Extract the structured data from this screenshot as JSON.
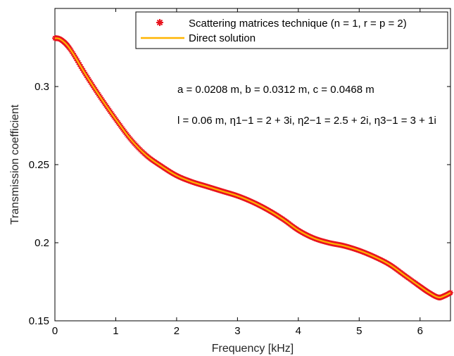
{
  "chart_data": {
    "type": "line",
    "xlabel": "Frequency [kHz]",
    "ylabel": "Transmission coefficient",
    "xlim": [
      0,
      6.5
    ],
    "ylim": [
      0.15,
      0.35
    ],
    "xticks": [
      0,
      1,
      2,
      3,
      4,
      5,
      6
    ],
    "yticks": [
      0.15,
      0.2,
      0.25,
      0.3
    ],
    "xtick_labels": [
      "0",
      "1",
      "2",
      "3",
      "4",
      "5",
      "6"
    ],
    "ytick_labels": [
      "0.15",
      "0.2",
      "0.25",
      "0.3"
    ],
    "grid": false,
    "legend_position": "top-right",
    "legend": [
      {
        "label_main": "Scattering matrices technique",
        "label_params": "(n = 1, r = p = 2)",
        "marker": "asterisk",
        "color": "#e8141e"
      },
      {
        "label_main": "Direct solution",
        "marker": "line",
        "color": "#ffb400"
      }
    ],
    "annotations": {
      "line1": "a = 0.0208 m, b = 0.0312 m, c = 0.0468 m",
      "line2": "l = 0.06 m, η1−1 = 2 + 3i, η2−1 = 2.5 + 2i, η3−1 = 3 + 1i"
    },
    "series": [
      {
        "name": "Scattering matrices technique (n = 1, r = p = 2)",
        "style": "markers",
        "color": "#e8141e",
        "x": [
          0.0,
          0.1,
          0.25,
          0.5,
          0.75,
          1.0,
          1.25,
          1.5,
          1.75,
          2.0,
          2.25,
          2.5,
          2.75,
          3.0,
          3.25,
          3.5,
          3.75,
          4.0,
          4.25,
          4.5,
          4.75,
          5.0,
          5.25,
          5.5,
          5.75,
          6.0,
          6.15,
          6.3,
          6.4,
          6.5
        ],
        "y": [
          0.331,
          0.33,
          0.324,
          0.308,
          0.293,
          0.279,
          0.266,
          0.256,
          0.249,
          0.243,
          0.239,
          0.236,
          0.233,
          0.23,
          0.226,
          0.221,
          0.215,
          0.208,
          0.203,
          0.2,
          0.198,
          0.195,
          0.191,
          0.186,
          0.179,
          0.172,
          0.168,
          0.165,
          0.166,
          0.168
        ]
      },
      {
        "name": "Direct solution",
        "style": "line",
        "color": "#ffb400",
        "x": [
          0.0,
          0.1,
          0.25,
          0.5,
          0.75,
          1.0,
          1.25,
          1.5,
          1.75,
          2.0,
          2.25,
          2.5,
          2.75,
          3.0,
          3.25,
          3.5,
          3.75,
          4.0,
          4.25,
          4.5,
          4.75,
          5.0,
          5.25,
          5.5,
          5.75,
          6.0,
          6.15,
          6.3,
          6.4,
          6.5
        ],
        "y": [
          0.331,
          0.33,
          0.324,
          0.308,
          0.293,
          0.279,
          0.266,
          0.256,
          0.249,
          0.243,
          0.239,
          0.236,
          0.233,
          0.23,
          0.226,
          0.221,
          0.215,
          0.208,
          0.203,
          0.2,
          0.198,
          0.195,
          0.191,
          0.186,
          0.179,
          0.172,
          0.168,
          0.165,
          0.166,
          0.168
        ]
      }
    ]
  }
}
